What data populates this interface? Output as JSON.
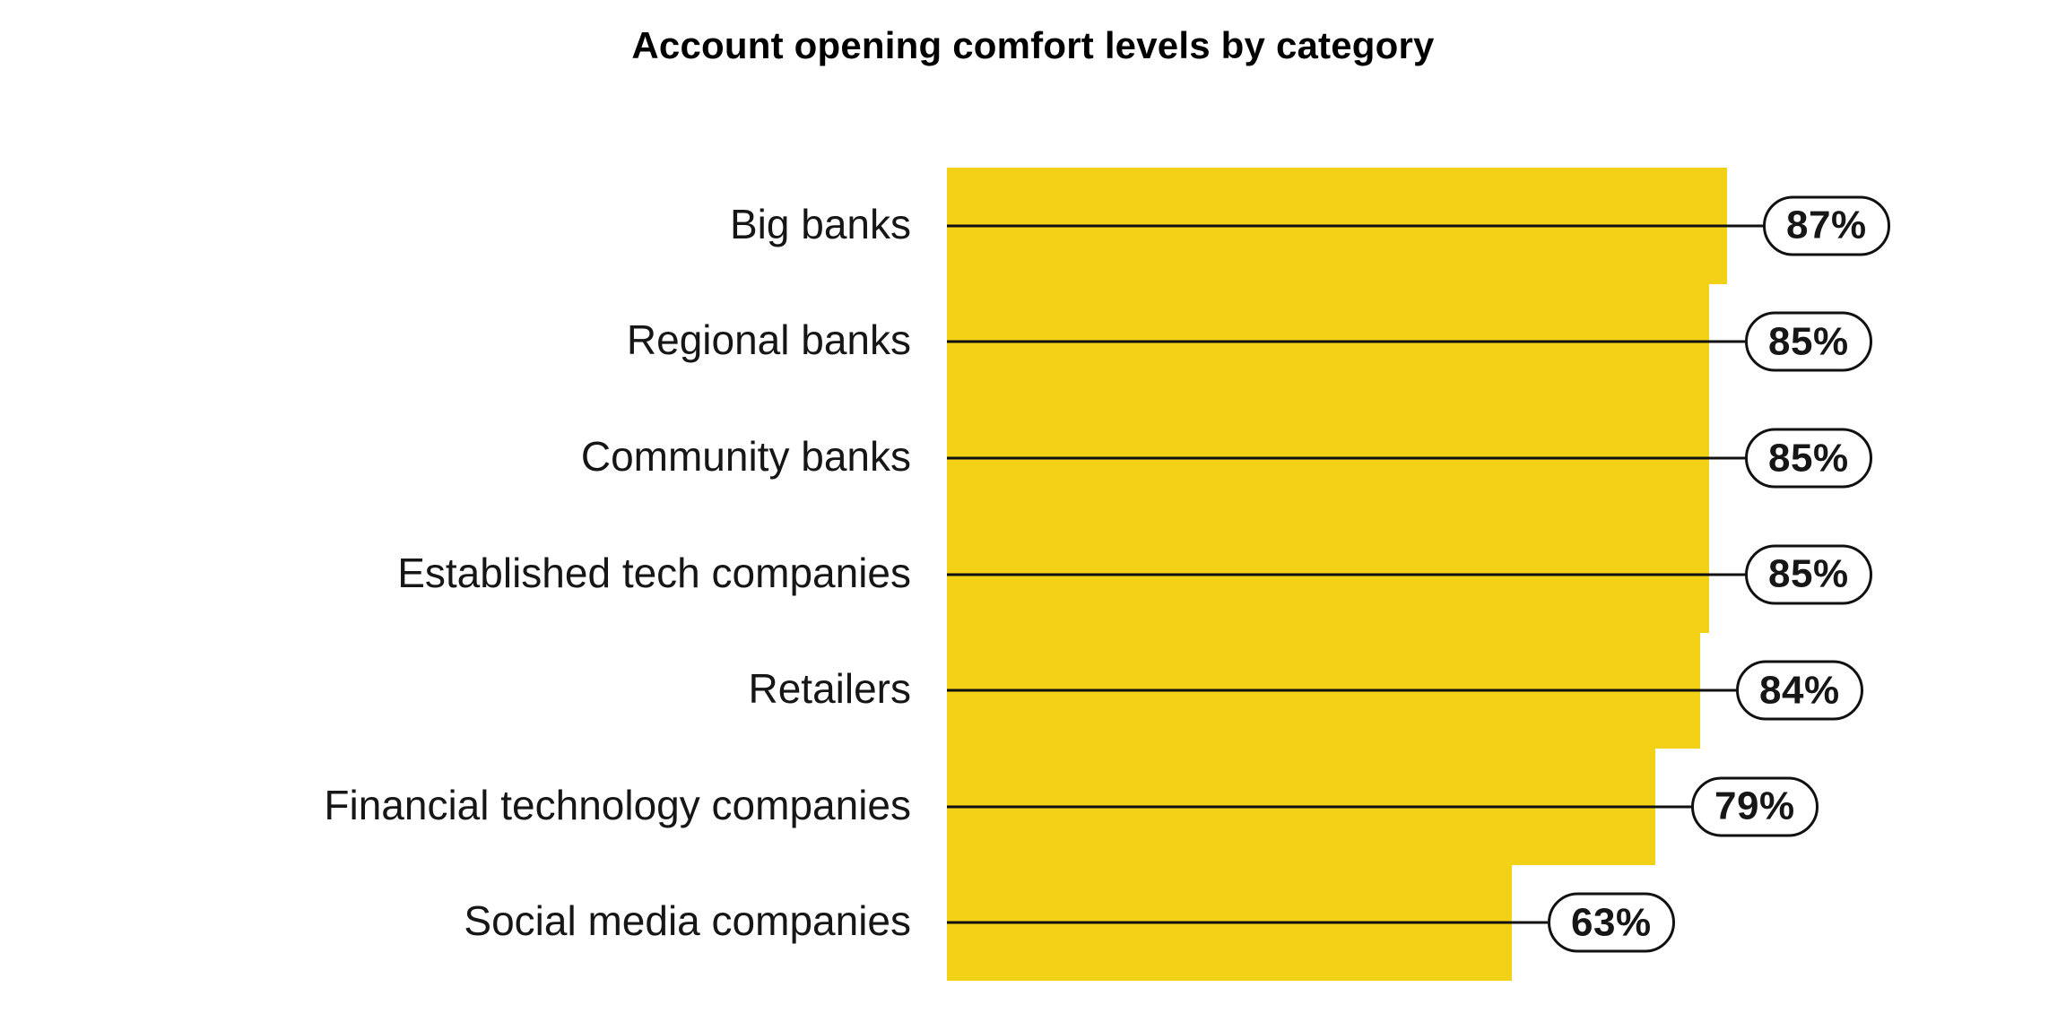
{
  "title": "Account opening comfort levels by category",
  "colors": {
    "bar": "#F2D116",
    "text": "#161616",
    "line": "#111111",
    "pill_fill": "#FFFFFF",
    "pill_border": "#111111",
    "background": "#FFFFFF"
  },
  "chart_data": {
    "type": "bar",
    "orientation": "horizontal",
    "title": "Account opening comfort levels by category",
    "categories": [
      "Big banks",
      "Regional banks",
      "Community banks",
      "Established tech companies",
      "Retailers",
      "Financial technology companies",
      "Social media companies"
    ],
    "values": [
      87,
      85,
      85,
      85,
      84,
      79,
      63
    ],
    "value_labels": [
      "87%",
      "85%",
      "85%",
      "85%",
      "84%",
      "79%",
      "63%"
    ],
    "value_unit": "%",
    "xlim": [
      0,
      100
    ],
    "grid": false,
    "legend": false,
    "bar_color": "#F2D116",
    "bars_contiguous": true,
    "label_style": "capsule-callout",
    "rows": [
      {
        "label": "Big banks",
        "value": 87,
        "value_label": "87%"
      },
      {
        "label": "Regional banks",
        "value": 85,
        "value_label": "85%"
      },
      {
        "label": "Community banks",
        "value": 85,
        "value_label": "85%"
      },
      {
        "label": "Established tech companies",
        "value": 85,
        "value_label": "85%"
      },
      {
        "label": "Retailers",
        "value": 84,
        "value_label": "84%"
      },
      {
        "label": "Financial technology companies",
        "value": 79,
        "value_label": "79%"
      },
      {
        "label": "Social media companies",
        "value": 63,
        "value_label": "63%"
      }
    ]
  }
}
